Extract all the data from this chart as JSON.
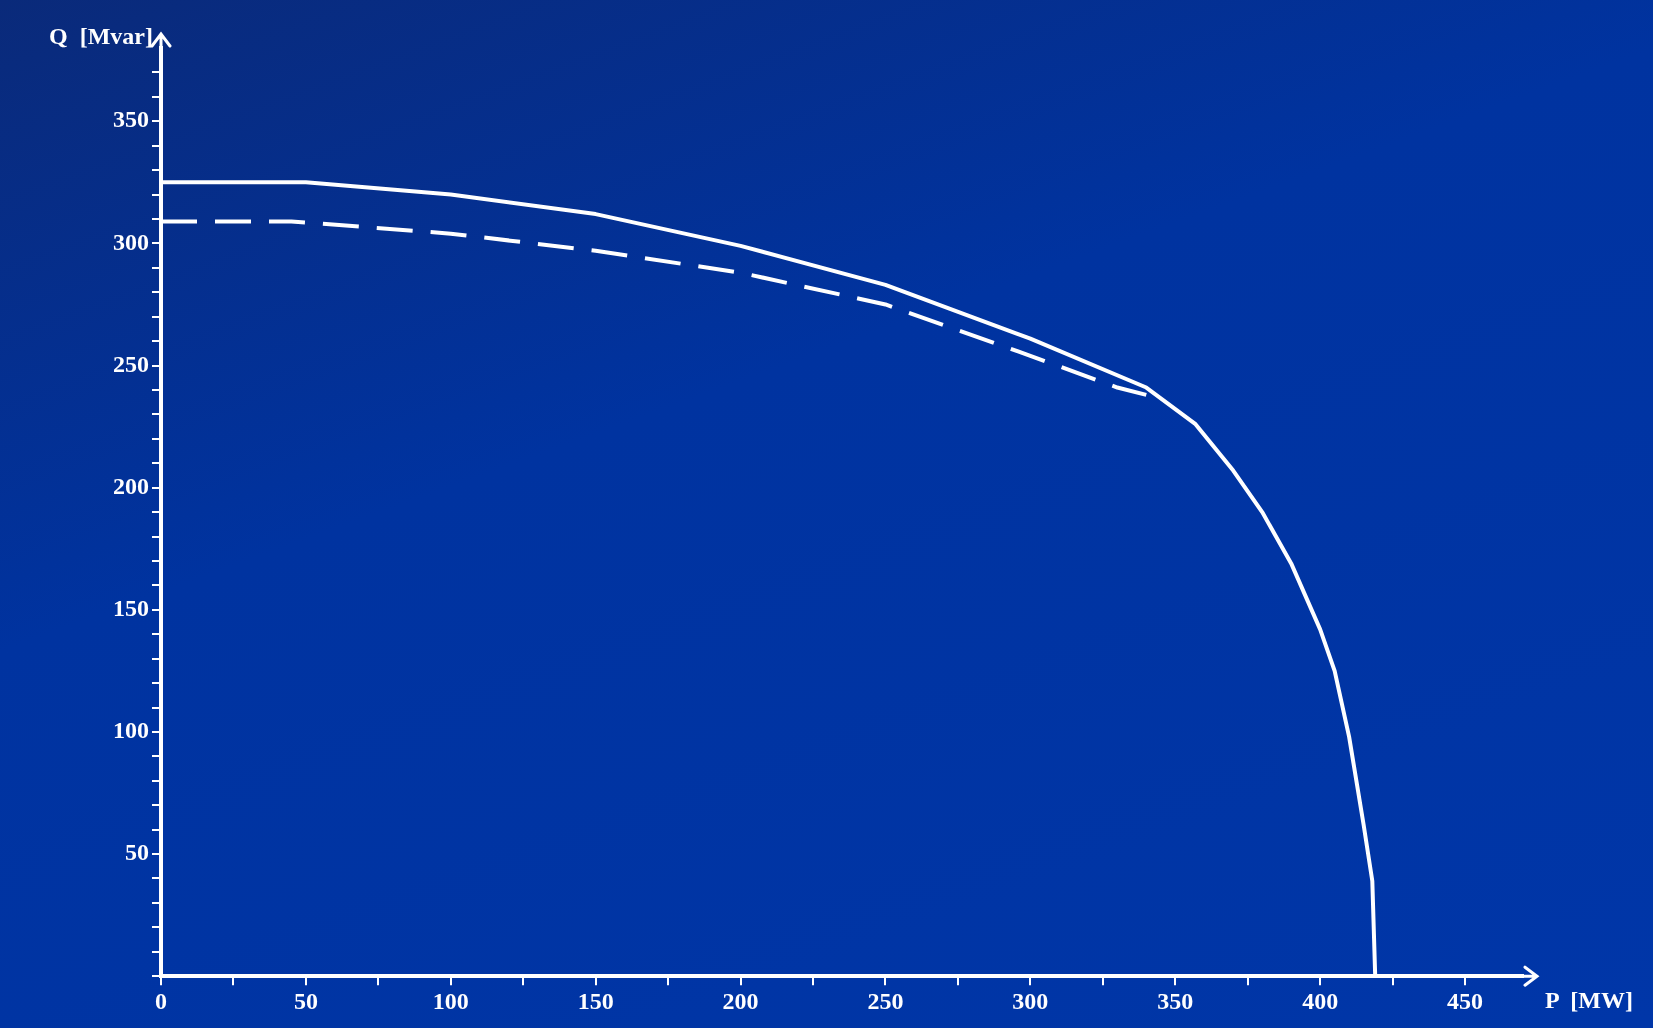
{
  "chart_data": {
    "type": "line",
    "xlabel": "P  [MW]",
    "ylabel": "Q  [Mvar]",
    "xlim": [
      0,
      470
    ],
    "ylim": [
      0,
      380
    ],
    "xticks": [
      0,
      {
        "value": 25,
        "label": null
      },
      50,
      {
        "value": 75,
        "label": null
      },
      100,
      {
        "value": 125,
        "label": null
      },
      150,
      {
        "value": 175,
        "label": null
      },
      200,
      {
        "value": 225,
        "label": null
      },
      250,
      {
        "value": 275,
        "label": null
      },
      300,
      {
        "value": 325,
        "label": null
      },
      350,
      {
        "value": 375,
        "label": null
      },
      400,
      {
        "value": 425,
        "label": null
      },
      450
    ],
    "yticks": [
      {
        "value": 0,
        "label": null
      },
      {
        "value": 10,
        "label": null
      },
      {
        "value": 20,
        "label": null
      },
      {
        "value": 30,
        "label": null
      },
      {
        "value": 40,
        "label": null
      },
      50,
      {
        "value": 60,
        "label": null
      },
      {
        "value": 70,
        "label": null
      },
      {
        "value": 80,
        "label": null
      },
      {
        "value": 90,
        "label": null
      },
      100,
      {
        "value": 110,
        "label": null
      },
      {
        "value": 120,
        "label": null
      },
      {
        "value": 130,
        "label": null
      },
      {
        "value": 140,
        "label": null
      },
      150,
      {
        "value": 160,
        "label": null
      },
      {
        "value": 170,
        "label": null
      },
      {
        "value": 180,
        "label": null
      },
      {
        "value": 190,
        "label": null
      },
      200,
      {
        "value": 210,
        "label": null
      },
      {
        "value": 220,
        "label": null
      },
      {
        "value": 230,
        "label": null
      },
      {
        "value": 240,
        "label": null
      },
      250,
      {
        "value": 260,
        "label": null
      },
      {
        "value": 270,
        "label": null
      },
      {
        "value": 280,
        "label": null
      },
      {
        "value": 290,
        "label": null
      },
      300,
      {
        "value": 310,
        "label": null
      },
      {
        "value": 320,
        "label": null
      },
      {
        "value": 330,
        "label": null
      },
      {
        "value": 340,
        "label": null
      },
      350,
      {
        "value": 360,
        "label": null
      },
      {
        "value": 370,
        "label": null
      }
    ],
    "grid": false,
    "legend": false,
    "marker": "none",
    "series": [
      {
        "color": "#ffffff",
        "line_style": "solid",
        "x": [
          0,
          50,
          100,
          150,
          200,
          250,
          300,
          340,
          357,
          370,
          380,
          390,
          400,
          405,
          410,
          415,
          418,
          419
        ],
        "values": [
          325,
          325,
          320,
          312,
          299,
          283,
          261,
          241,
          226,
          207,
          190,
          169,
          142,
          125,
          98,
          62,
          39,
          0
        ]
      },
      {
        "color": "#ffffff",
        "line_style": "dashed",
        "x": [
          0,
          45,
          100,
          150,
          200,
          250,
          300,
          330,
          340
        ],
        "values": [
          309,
          309,
          304,
          297,
          288,
          275,
          254,
          241,
          238
        ]
      }
    ]
  }
}
